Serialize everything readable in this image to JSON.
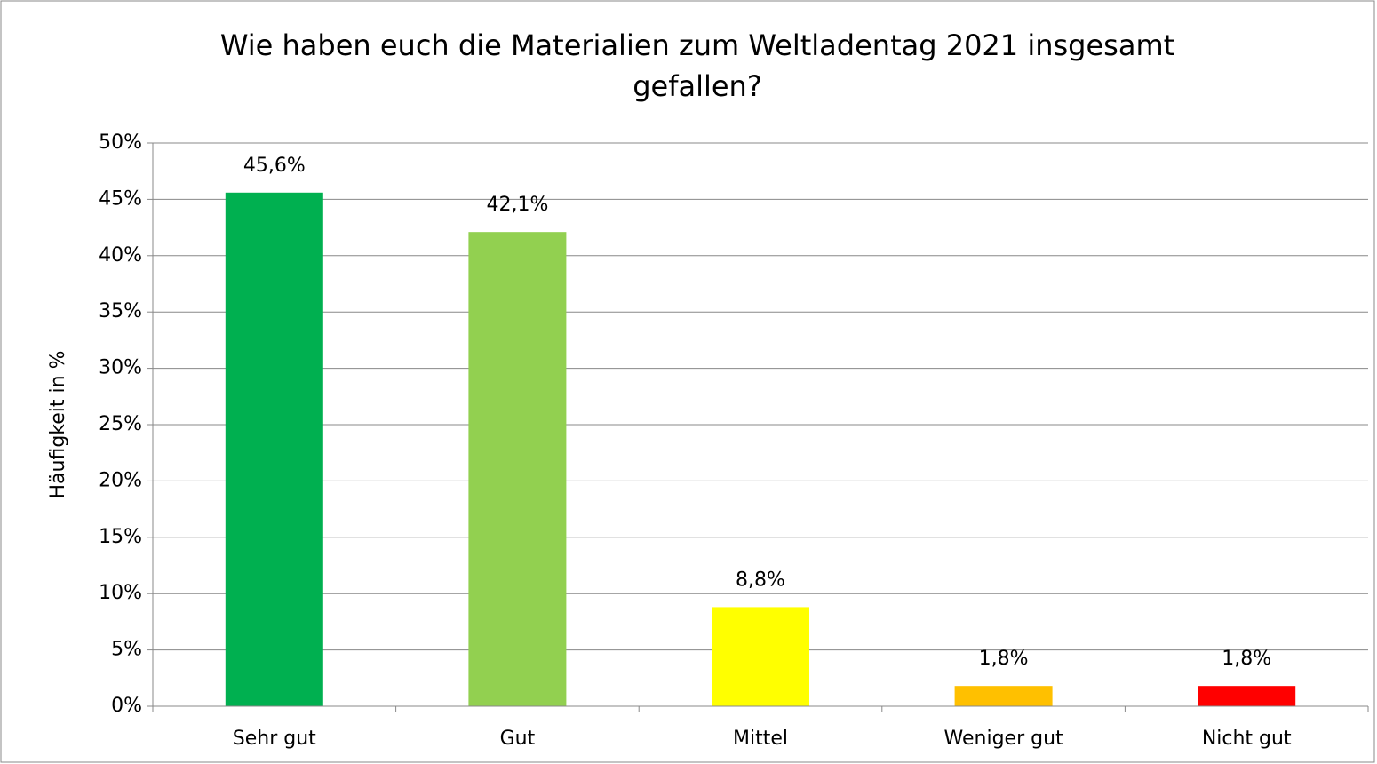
{
  "chart_data": {
    "type": "bar",
    "title": "Wie haben euch die Materialien zum Weltladentag 2021 insgesamt gefallen?",
    "ylabel": "Häufigkeit in %",
    "categories": [
      "Sehr gut",
      "Gut",
      "Mittel",
      "Weniger gut",
      "Nicht gut"
    ],
    "values": [
      45.6,
      42.1,
      8.8,
      1.8,
      1.8
    ],
    "value_labels": [
      "45,6%",
      "42,1%",
      "8,8%",
      "1,8%",
      "1,8%"
    ],
    "colors": [
      "#00b050",
      "#92d050",
      "#ffff00",
      "#ffc000",
      "#ff0000"
    ],
    "ylim": [
      0,
      50
    ],
    "yticks": [
      {
        "value": 0,
        "label": "0%"
      },
      {
        "value": 5,
        "label": "5%"
      },
      {
        "value": 10,
        "label": "10%"
      },
      {
        "value": 15,
        "label": "15%"
      },
      {
        "value": 20,
        "label": "20%"
      },
      {
        "value": 25,
        "label": "25%"
      },
      {
        "value": 30,
        "label": "30%"
      },
      {
        "value": 35,
        "label": "35%"
      },
      {
        "value": 40,
        "label": "40%"
      },
      {
        "value": 45,
        "label": "45%"
      },
      {
        "value": 50,
        "label": "50%"
      }
    ],
    "grid": true
  }
}
